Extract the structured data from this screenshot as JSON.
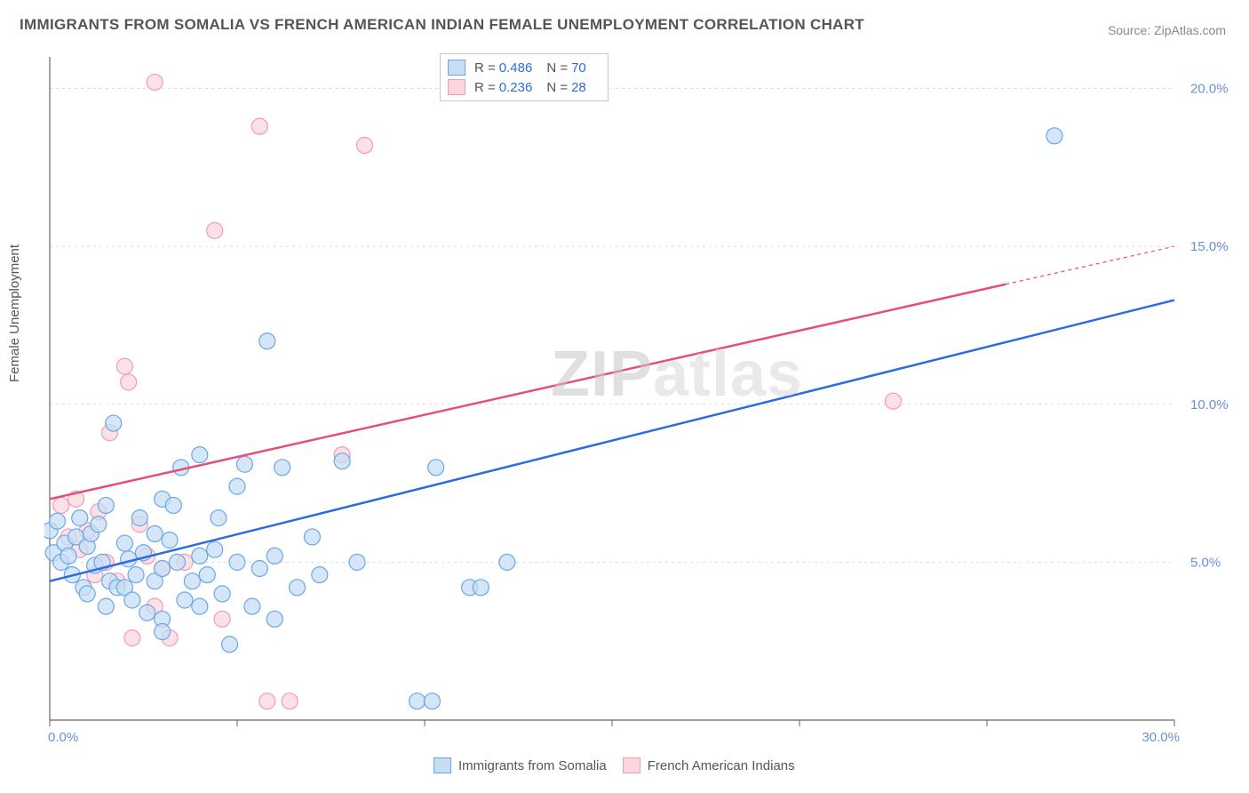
{
  "title": "IMMIGRANTS FROM SOMALIA VS FRENCH AMERICAN INDIAN FEMALE UNEMPLOYMENT CORRELATION CHART",
  "source": "Source: ZipAtlas.com",
  "y_axis_label": "Female Unemployment",
  "watermark": {
    "part1": "ZIP",
    "part2": "atlas"
  },
  "colors": {
    "blue_stroke": "#6aa7e8",
    "blue_fill": "#c6ddf4",
    "pink_stroke": "#f29bb1",
    "pink_fill": "#fcd7e0",
    "blue_line": "#2d6cdf",
    "pink_line": "#e84d7a",
    "grid": "#dcdcdc",
    "axis": "#666666",
    "tick_text": "#6a8fd6"
  },
  "chart": {
    "type": "scatter",
    "x_range": [
      0,
      30
    ],
    "y_range": [
      0,
      21
    ],
    "x_ticks": [
      0,
      5,
      10,
      15,
      20,
      25,
      30
    ],
    "x_tick_labels": {
      "0": "0.0%",
      "30": "30.0%"
    },
    "y_grid": [
      5,
      10,
      15,
      20
    ],
    "y_tick_labels": {
      "5": "5.0%",
      "10": "10.0%",
      "15": "15.0%",
      "20": "20.0%"
    },
    "marker_radius": 9,
    "marker_opacity": 0.75,
    "line_width": 2.5,
    "grid_dash": "3,4"
  },
  "legend_top": {
    "rows": [
      {
        "swatch": "blue",
        "r_label": "R =",
        "r": "0.486",
        "n_label": "N =",
        "n": "70"
      },
      {
        "swatch": "pink",
        "r_label": "R =",
        "r": "0.236",
        "n_label": "N =",
        "n": "28"
      }
    ]
  },
  "legend_bottom": {
    "items": [
      {
        "swatch": "blue",
        "label": "Immigrants from Somalia"
      },
      {
        "swatch": "pink",
        "label": "French American Indians"
      }
    ]
  },
  "series": {
    "blue": {
      "trend": {
        "x1": 0,
        "y1": 4.4,
        "x2": 30,
        "y2": 13.3
      },
      "points": [
        [
          0.0,
          6.0
        ],
        [
          0.1,
          5.3
        ],
        [
          0.2,
          6.3
        ],
        [
          0.3,
          5.0
        ],
        [
          0.4,
          5.6
        ],
        [
          0.5,
          5.2
        ],
        [
          0.6,
          4.6
        ],
        [
          0.7,
          5.8
        ],
        [
          0.8,
          6.4
        ],
        [
          0.9,
          4.2
        ],
        [
          1.0,
          5.5
        ],
        [
          1.0,
          4.0
        ],
        [
          1.1,
          5.9
        ],
        [
          1.2,
          4.9
        ],
        [
          1.3,
          6.2
        ],
        [
          1.4,
          5.0
        ],
        [
          1.5,
          6.8
        ],
        [
          1.5,
          3.6
        ],
        [
          1.6,
          4.4
        ],
        [
          1.8,
          4.2
        ],
        [
          1.7,
          9.4
        ],
        [
          2.0,
          5.6
        ],
        [
          2.0,
          4.2
        ],
        [
          2.1,
          5.1
        ],
        [
          2.2,
          3.8
        ],
        [
          2.3,
          4.6
        ],
        [
          2.4,
          6.4
        ],
        [
          2.5,
          5.3
        ],
        [
          2.6,
          3.4
        ],
        [
          2.8,
          5.9
        ],
        [
          2.8,
          4.4
        ],
        [
          3.0,
          7.0
        ],
        [
          3.0,
          4.8
        ],
        [
          3.0,
          3.2
        ],
        [
          3.2,
          5.7
        ],
        [
          3.3,
          6.8
        ],
        [
          3.4,
          5.0
        ],
        [
          3.5,
          8.0
        ],
        [
          3.6,
          3.8
        ],
        [
          3.8,
          4.4
        ],
        [
          4.0,
          8.4
        ],
        [
          4.0,
          5.2
        ],
        [
          4.0,
          3.6
        ],
        [
          4.2,
          4.6
        ],
        [
          4.4,
          5.4
        ],
        [
          4.5,
          6.4
        ],
        [
          4.6,
          4.0
        ],
        [
          4.8,
          2.4
        ],
        [
          5.0,
          7.4
        ],
        [
          5.0,
          5.0
        ],
        [
          5.2,
          8.1
        ],
        [
          5.4,
          3.6
        ],
        [
          5.6,
          4.8
        ],
        [
          5.8,
          12.0
        ],
        [
          6.0,
          5.2
        ],
        [
          6.2,
          8.0
        ],
        [
          6.6,
          4.2
        ],
        [
          7.0,
          5.8
        ],
        [
          7.2,
          4.6
        ],
        [
          7.8,
          8.2
        ],
        [
          8.2,
          5.0
        ],
        [
          9.8,
          0.6
        ],
        [
          10.2,
          0.6
        ],
        [
          10.3,
          8.0
        ],
        [
          11.2,
          4.2
        ],
        [
          11.5,
          4.2
        ],
        [
          12.2,
          5.0
        ],
        [
          6.0,
          3.2
        ],
        [
          26.8,
          18.5
        ],
        [
          3.0,
          2.8
        ]
      ]
    },
    "pink": {
      "trend": {
        "x1": 0,
        "y1": 7.0,
        "x2": 30,
        "y2": 15.0,
        "dash_from_x": 25.5
      },
      "points": [
        [
          0.3,
          6.8
        ],
        [
          0.5,
          5.8
        ],
        [
          0.7,
          7.0
        ],
        [
          0.8,
          5.4
        ],
        [
          1.0,
          6.0
        ],
        [
          1.2,
          4.6
        ],
        [
          1.3,
          6.6
        ],
        [
          1.5,
          5.0
        ],
        [
          1.6,
          9.1
        ],
        [
          1.8,
          4.4
        ],
        [
          2.0,
          11.2
        ],
        [
          2.1,
          10.7
        ],
        [
          2.2,
          2.6
        ],
        [
          2.4,
          6.2
        ],
        [
          2.6,
          5.2
        ],
        [
          2.8,
          3.6
        ],
        [
          2.8,
          20.2
        ],
        [
          3.0,
          4.8
        ],
        [
          3.2,
          2.6
        ],
        [
          3.6,
          5.0
        ],
        [
          4.4,
          15.5
        ],
        [
          4.6,
          3.2
        ],
        [
          5.6,
          18.8
        ],
        [
          5.8,
          0.6
        ],
        [
          6.4,
          0.6
        ],
        [
          7.8,
          8.4
        ],
        [
          8.4,
          18.2
        ],
        [
          22.5,
          10.1
        ]
      ]
    }
  }
}
